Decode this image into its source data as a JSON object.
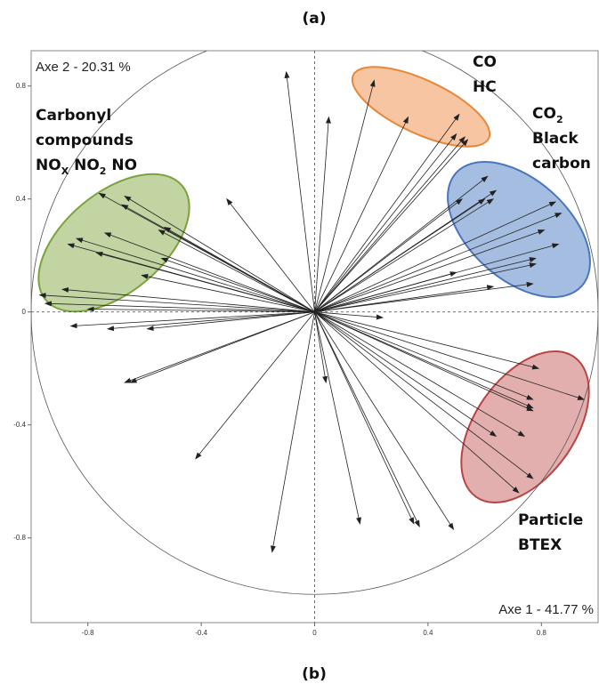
{
  "chart_data": {
    "type": "arrows",
    "title": "(a)",
    "caption": "(b)",
    "x_label": "Axe 1  -  41.77 %",
    "y_label": "Axe 2  -  20.31 %",
    "xlim": [
      -1,
      1
    ],
    "ylim": [
      -1.1,
      0.925
    ],
    "xticks": [
      -0.8,
      -0.4,
      0,
      0.4,
      0.8
    ],
    "yticks": [
      -0.8,
      -0.4,
      0,
      0.4,
      0.8
    ],
    "color": "#222222",
    "x": [
      0.21,
      0.33,
      0.51,
      0.5,
      0.53,
      0.54,
      -0.1,
      0.05,
      0.61,
      0.52,
      0.64,
      0.6,
      0.63,
      0.85,
      0.87,
      0.81,
      0.86,
      0.78,
      0.78,
      0.77,
      0.5,
      0.63,
      -0.67,
      -0.76,
      -0.68,
      -0.55,
      -0.53,
      -0.74,
      -0.84,
      -0.87,
      -0.77,
      -0.54,
      -0.97,
      -0.95,
      -0.89,
      -0.61,
      -0.31,
      -0.8,
      -0.86,
      -0.73,
      -0.59,
      -0.67,
      -0.65,
      -0.42,
      -0.15,
      0.79,
      0.95,
      0.77,
      0.77,
      0.77,
      0.74,
      0.64,
      0.77,
      0.72,
      0.16,
      0.35,
      0.37,
      0.49,
      0.04,
      0.24
    ],
    "values": [
      0.82,
      0.69,
      0.7,
      0.63,
      0.62,
      0.61,
      0.85,
      0.69,
      0.48,
      0.4,
      0.43,
      0.4,
      0.4,
      0.39,
      0.35,
      0.29,
      0.24,
      0.19,
      0.17,
      0.1,
      0.14,
      0.09,
      0.41,
      0.42,
      0.38,
      0.29,
      0.3,
      0.28,
      0.26,
      0.24,
      0.21,
      0.19,
      0.06,
      0.03,
      0.08,
      0.13,
      0.4,
      0.01,
      -0.05,
      -0.06,
      -0.06,
      -0.25,
      -0.25,
      -0.52,
      -0.85,
      -0.2,
      -0.31,
      -0.31,
      -0.35,
      -0.34,
      -0.44,
      -0.44,
      -0.59,
      -0.64,
      -0.75,
      -0.75,
      -0.76,
      -0.77,
      -0.25,
      -0.02
    ],
    "groups": [
      {
        "lines": [
          [
            {
              "text": "CO"
            }
          ],
          [
            {
              "text": "HC"
            }
          ]
        ]
      },
      {
        "lines": [
          [
            {
              "text": "CO"
            },
            {
              "sub": "2"
            }
          ],
          [
            {
              "text": "Black"
            }
          ],
          [
            {
              "text": "carbon"
            }
          ]
        ]
      },
      {
        "lines": [
          [
            {
              "text": "Carbonyl"
            }
          ],
          [
            {
              "text": "compounds"
            }
          ],
          [
            {
              "text": "NO"
            },
            {
              "sub": "X"
            },
            {
              "text": " NO"
            },
            {
              "sub": "2"
            },
            {
              "text": " NO"
            }
          ]
        ]
      },
      {
        "lines": [
          [
            {
              "text": "Particle"
            }
          ],
          [
            {
              "text": "BTEX"
            }
          ]
        ]
      }
    ]
  }
}
